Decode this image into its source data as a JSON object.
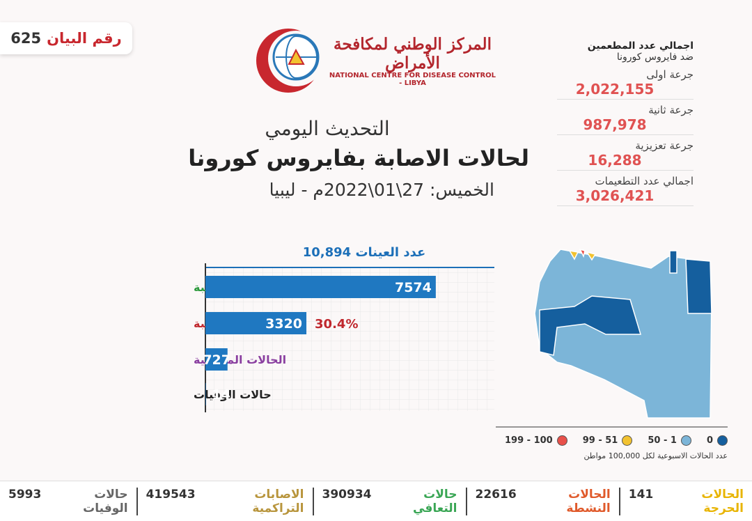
{
  "statement": {
    "label": "رقم البيان",
    "number": "625"
  },
  "logo": {
    "arabic": "المركز الوطني لمكافحة الأمراض",
    "english": "NATIONAL CENTRE FOR DISEASE CONTROL - LIBYA"
  },
  "header": {
    "title": "التحديث اليومي",
    "subtitle": "لحالات الاصابة بفايروس كورونا",
    "date": "الخميس: 27\\01\\2022م - ليبيا"
  },
  "vaccination": {
    "title": "اجمالي عدد المطعمين",
    "subtitle": "ضد فايروس كورونا",
    "items": [
      {
        "label": "جرعة اولى",
        "value": "2,022,155"
      },
      {
        "label": "جرعة ثانية",
        "value": "987,978"
      },
      {
        "label": "جرعة تعزيزية",
        "value": "16,288"
      },
      {
        "label": "اجمالي عدد التطعيمات",
        "value": "3,026,421"
      }
    ]
  },
  "chart_data": {
    "type": "bar",
    "orientation": "horizontal",
    "samples_label": "عدد العينات",
    "samples_value": "10,894",
    "categories": [
      "الحالات السالبة",
      "الحالات الموجبة",
      "الحالات المتعافية",
      "حالات الوفيات"
    ],
    "category_colors": [
      "#2e9a3e",
      "#c0282e",
      "#8a3fa0",
      "#222222"
    ],
    "values": [
      7574,
      3320,
      727,
      14
    ],
    "color": "#1f78c1",
    "annotation": "30.4%",
    "xlim": [
      0,
      9500
    ]
  },
  "map_legend": {
    "items": [
      {
        "label": "0",
        "color": "#155f9e"
      },
      {
        "label": "50 - 1",
        "color": "#7cb5d8"
      },
      {
        "label": "99 - 51",
        "color": "#f2c230"
      },
      {
        "label": "199 - 100",
        "color": "#e8504a"
      }
    ],
    "caption": "عدد الحالات الاسبوعية لكل 100,000 مواطن"
  },
  "footer": [
    {
      "label": "الحالات الحرجة",
      "value": "141",
      "color": "#e8b400"
    },
    {
      "label": "الحالات النشطة",
      "value": "22616",
      "color": "#e05a2b"
    },
    {
      "label": "حالات التعافي",
      "value": "390934",
      "color": "#3aa655"
    },
    {
      "label": "الاصابات التراكمية",
      "value": "419543",
      "color": "#b8953c"
    },
    {
      "label": "حالات الوفيات",
      "value": "5993",
      "color": "#666666"
    }
  ]
}
